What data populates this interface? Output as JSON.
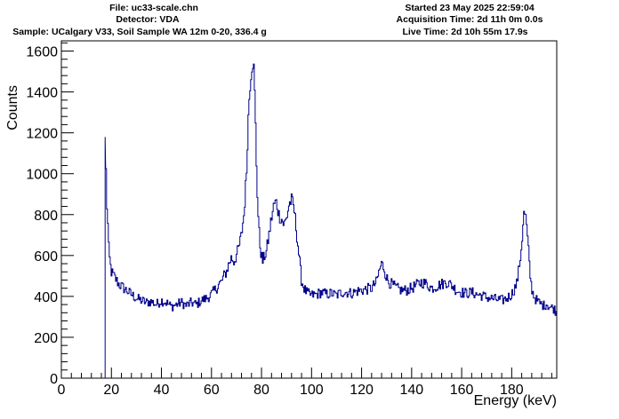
{
  "header": {
    "file": "File: uc33-scale.chn",
    "detector": "Detector: VDA",
    "sample": "Sample: UCalgary V33, Soil Sample WA 12m 0-20, 336.4 g",
    "started": "Started 23 May 2025 22:59:04",
    "acquisition": "Acquisition Time: 2d 11h 0m 0.0s",
    "live": "Live Time: 2d 10h 55m 17.9s"
  },
  "chart_data": {
    "type": "line",
    "title": "",
    "xlabel": "Energy (keV)",
    "ylabel": "Counts",
    "xlim": [
      0,
      198
    ],
    "ylim": [
      0,
      1650
    ],
    "x_ticks": [
      0,
      20,
      40,
      60,
      80,
      100,
      120,
      140,
      160,
      180
    ],
    "y_ticks": [
      0,
      200,
      400,
      600,
      800,
      1000,
      1200,
      1400,
      1600
    ],
    "grid": false,
    "line_color": "#00008b",
    "series": [
      {
        "x": [
          17.5,
          17.7,
          18.0,
          18.5,
          19.0,
          19.5,
          20.0,
          21.0,
          22.0,
          23.0,
          24.0,
          25.0,
          26.0,
          27.0,
          28.0,
          30.0,
          32.0,
          34.0,
          36.0,
          38.0,
          40.0,
          42.0,
          44.0,
          46.0,
          48.0,
          50.0,
          52.0,
          54.0,
          56.0,
          58.0,
          60.0,
          62.0,
          63.0,
          64.0,
          65.0,
          66.0,
          67.0,
          68.0,
          69.0,
          70.0,
          71.0,
          72.0,
          73.0,
          74.0,
          74.5,
          75.0,
          75.5,
          76.0,
          76.5,
          77.0,
          77.5,
          78.0,
          78.5,
          79.0,
          79.5,
          80.0,
          80.5,
          81.0,
          82.0,
          83.0,
          84.0,
          85.0,
          86.0,
          87.0,
          88.0,
          89.0,
          90.0,
          91.0,
          92.0,
          93.0,
          94.0,
          95.0,
          96.0,
          97.0,
          98.0,
          99.0,
          100.0,
          102.0,
          104.0,
          106.0,
          108.0,
          110.0,
          112.0,
          114.0,
          116.0,
          118.0,
          120.0,
          122.0,
          124.0,
          126.0,
          127.0,
          128.0,
          129.0,
          130.0,
          131.0,
          132.0,
          134.0,
          136.0,
          138.0,
          140.0,
          142.0,
          144.0,
          146.0,
          148.0,
          150.0,
          152.0,
          154.0,
          156.0,
          158.0,
          160.0,
          162.0,
          164.0,
          166.0,
          168.0,
          170.0,
          172.0,
          174.0,
          176.0,
          178.0,
          180.0,
          182.0,
          183.0,
          184.0,
          184.5,
          185.0,
          185.5,
          186.0,
          186.5,
          187.0,
          187.5,
          188.0,
          189.0,
          190.0,
          191.0,
          192.0,
          193.0,
          194.0,
          195.0,
          196.0,
          197.0,
          198.0
        ],
        "y": [
          0,
          1180,
          900,
          780,
          620,
          560,
          520,
          500,
          480,
          460,
          450,
          440,
          430,
          420,
          410,
          390,
          380,
          370,
          375,
          360,
          380,
          370,
          350,
          360,
          370,
          355,
          370,
          360,
          380,
          390,
          410,
          440,
          460,
          470,
          500,
          520,
          560,
          590,
          570,
          600,
          640,
          700,
          800,
          1000,
          1200,
          1350,
          1450,
          1520,
          1560,
          1500,
          1300,
          1050,
          850,
          720,
          640,
          600,
          570,
          590,
          620,
          700,
          780,
          850,
          860,
          800,
          780,
          750,
          780,
          850,
          870,
          830,
          720,
          600,
          480,
          440,
          420,
          410,
          405,
          410,
          420,
          410,
          415,
          405,
          420,
          420,
          415,
          425,
          430,
          435,
          440,
          470,
          520,
          560,
          540,
          490,
          470,
          460,
          440,
          430,
          430,
          440,
          455,
          470,
          460,
          440,
          450,
          460,
          470,
          455,
          430,
          420,
          415,
          420,
          410,
          405,
          395,
          390,
          385,
          380,
          390,
          410,
          460,
          540,
          650,
          750,
          810,
          800,
          740,
          660,
          570,
          490,
          440,
          400,
          380,
          370,
          360,
          355,
          365,
          350,
          345,
          340,
          320
        ]
      }
    ]
  }
}
